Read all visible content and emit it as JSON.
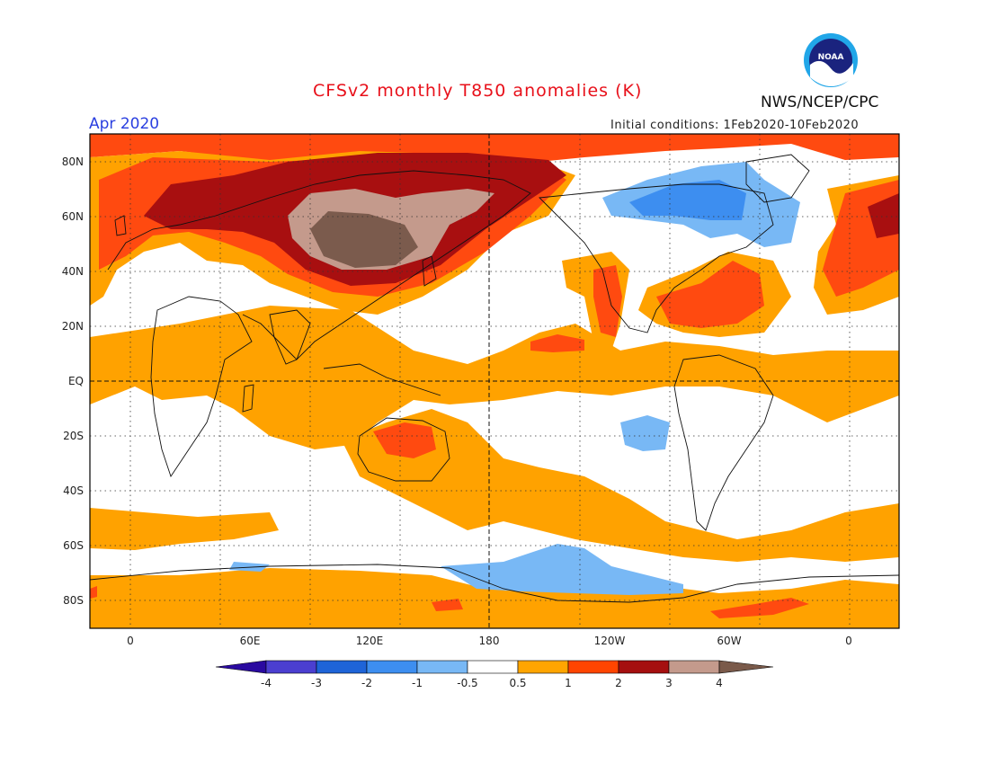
{
  "header": {
    "title": "CFSv2 monthly T850 anomalies (K)",
    "month": "Apr 2020",
    "initial_conditions": "Initial conditions: 1Feb2020-10Feb2020",
    "organization": "NWS/NCEP/CPC",
    "logo_text": "NOAA"
  },
  "map": {
    "lat_labels": [
      "80N",
      "60N",
      "40N",
      "20N",
      "EQ",
      "20S",
      "40S",
      "60S",
      "80S"
    ],
    "lon_labels": [
      "0",
      "60E",
      "120E",
      "180",
      "120W",
      "60W",
      "0"
    ]
  },
  "colorbar": {
    "labels": [
      "-4",
      "-3",
      "-2",
      "-1",
      "-0.5",
      "0.5",
      "1",
      "2",
      "3",
      "4"
    ],
    "colors": [
      "#2a0aa0",
      "#4b3fd0",
      "#1e64d8",
      "#3d8ef0",
      "#78b8f5",
      "#ffffff",
      "#ffa500",
      "#ff4500",
      "#a50f0f",
      "#c49a8c",
      "#7a5a4a"
    ]
  },
  "colors": {
    "ocean_base": "#ffffff",
    "weak_warm": "#ffa200",
    "warm": "#ff4a10",
    "strong_warm": "#a80f10",
    "very_warm": "#c49a8c",
    "extreme_warm": "#7b5b4d",
    "weak_cool": "#78b8f5",
    "cool": "#3d8ef0"
  }
}
